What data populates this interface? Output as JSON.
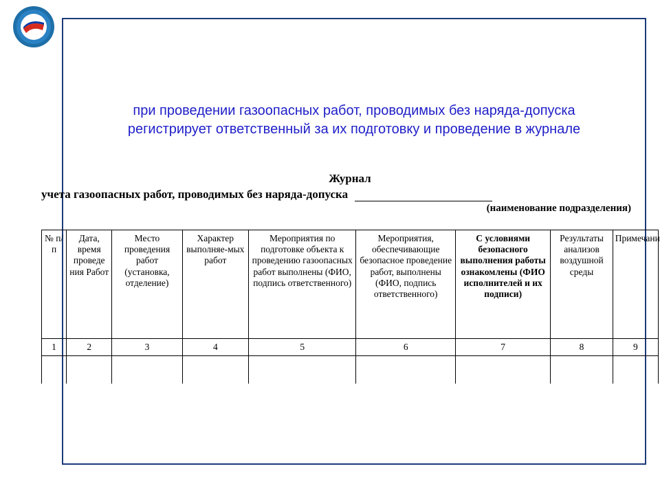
{
  "logo": {
    "outer_color": "#1e6fa8",
    "inner_color": "#ffffff",
    "flag_red": "#d52b1e",
    "flag_blue": "#0039a6",
    "size": 60
  },
  "frame": {
    "border_color": "#1a3b7a"
  },
  "main_title": {
    "line1": "при проведении газоопасных работ, проводимых без наряда-допуска",
    "line2": "регистрирует ответственный за их подготовку и проведение в журнале",
    "color": "#2020c8",
    "font_size": 20
  },
  "journal": {
    "title": "Журнал",
    "subtitle": "учета газоопасных работ, проводимых без наряда-допуска",
    "hint": "(наименование подразделения)"
  },
  "table": {
    "columns": [
      {
        "label": "№ п/п",
        "width": 30,
        "bold": false
      },
      {
        "label": "Дата, время проведе ния Работ",
        "width": 55,
        "bold": false
      },
      {
        "label": "Место проведения работ (установка, отделение)",
        "width": 85,
        "bold": false
      },
      {
        "label": "Характер выполняе-мых работ",
        "width": 80,
        "bold": false
      },
      {
        "label": "Мероприятия по подготовке объекта к проведению газоопасных работ выполнены (ФИО, подпись ответственного)",
        "width": 130,
        "bold": false
      },
      {
        "label": "Мероприятия, обеспечивающие безопасное проведение работ, выполнены (ФИО, подпись ответственного)",
        "width": 120,
        "bold": false
      },
      {
        "label": "С условиями безопасного выполнения работы ознакомлены (ФИО исполнителей и их подписи)",
        "width": 115,
        "bold": true
      },
      {
        "label": "Результаты анализов воздушной среды",
        "width": 75,
        "bold": false
      },
      {
        "label": "Примечание",
        "width": 55,
        "bold": false
      }
    ],
    "number_row": [
      "1",
      "2",
      "3",
      "4",
      "5",
      "6",
      "7",
      "8",
      "9"
    ],
    "border_color": "#000000",
    "font_size": 13.5
  }
}
